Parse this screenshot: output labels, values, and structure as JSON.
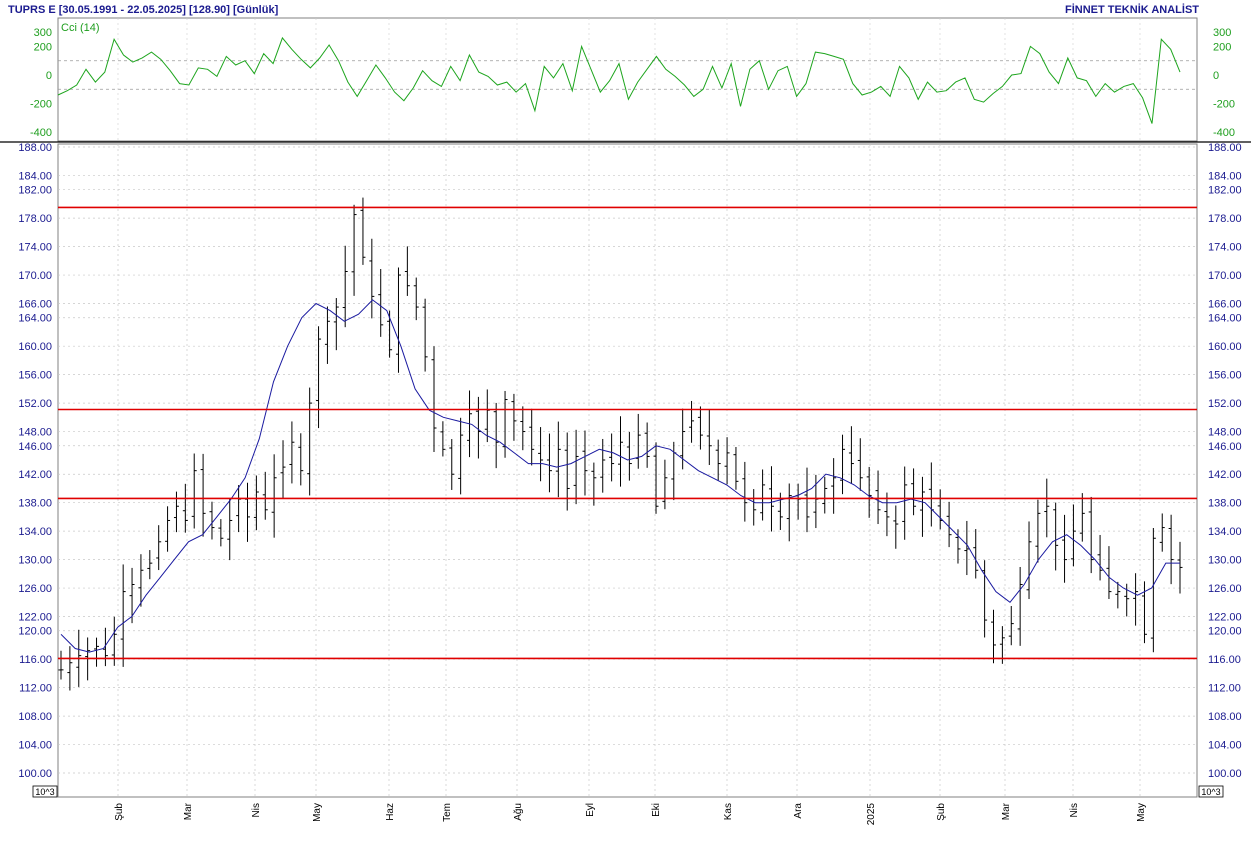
{
  "header": {
    "symbol": "TUPRS E",
    "range": "[30.05.1991 - 22.05.2025]",
    "last": "[128.90]",
    "period": "[Günlük]",
    "brand": "FİNNET TEKNİK ANALİST"
  },
  "colors": {
    "text": "#1b1b8f",
    "cci": "#1ea51e",
    "ma": "#1a1aa0",
    "bars": "#000000",
    "levels": "#e00000",
    "grid": "#b8b8b8"
  },
  "chart_data": [
    {
      "type": "line",
      "title": "Cci (14)",
      "ylim": [
        -450,
        400
      ],
      "y_ticks": [
        300,
        200,
        0,
        -200,
        -400
      ],
      "y_tick_labels": [
        "300",
        "200",
        "0",
        "-200",
        "-400"
      ],
      "dashed_levels": [
        100,
        -100
      ],
      "series": [
        {
          "name": "Cci (14)",
          "values": [
            -140,
            -110,
            -70,
            40,
            -50,
            20,
            250,
            140,
            90,
            120,
            160,
            110,
            30,
            -60,
            -70,
            50,
            40,
            -10,
            130,
            70,
            100,
            10,
            150,
            80,
            260,
            180,
            110,
            50,
            120,
            210,
            100,
            -50,
            -150,
            -40,
            70,
            -20,
            -120,
            -180,
            -90,
            30,
            -40,
            -80,
            60,
            -40,
            140,
            20,
            -10,
            -70,
            -50,
            -120,
            -60,
            -250,
            60,
            -20,
            80,
            -110,
            200,
            40,
            -120,
            -40,
            80,
            -170,
            -50,
            40,
            130,
            40,
            -10,
            -70,
            -150,
            -100,
            60,
            -90,
            80,
            -220,
            40,
            100,
            -100,
            30,
            60,
            -150,
            -60,
            160,
            150,
            130,
            110,
            -60,
            -140,
            -120,
            -80,
            -150,
            60,
            -20,
            -170,
            -50,
            -120,
            -110,
            -50,
            -20,
            -170,
            -190,
            -130,
            -80,
            0,
            10,
            200,
            150,
            20,
            -60,
            120,
            -20,
            -40,
            -150,
            -60,
            -120,
            -80,
            -60,
            -160,
            -340,
            250,
            180,
            20
          ]
        }
      ]
    },
    {
      "type": "bar",
      "subtype": "ohlc",
      "ylim": [
        98,
        189
      ],
      "y_ticks": [
        188,
        184,
        182,
        178,
        174,
        170,
        166,
        164,
        160,
        156,
        152,
        148,
        146,
        142,
        138,
        134,
        130,
        126,
        122,
        120,
        116,
        112,
        108,
        104,
        100
      ],
      "y_tick_labels": [
        "188.00",
        "184.00",
        "182.00",
        "178.00",
        "174.00",
        "170.00",
        "166.00",
        "164.00",
        "160.00",
        "156.00",
        "152.00",
        "148.00",
        "146.00",
        "142.00",
        "138.00",
        "134.00",
        "130.00",
        "126.00",
        "122.00",
        "120.00",
        "116.00",
        "112.00",
        "108.00",
        "104.00",
        "100.00"
      ],
      "scale_label": "10^3",
      "x_labels": [
        "Şub",
        "Mar",
        "Nis",
        "May",
        "Haz",
        "Tem",
        "Ağu",
        "Eyl",
        "Eki",
        "Kas",
        "Ara",
        "2025",
        "Şub",
        "Mar",
        "Nis",
        "May"
      ],
      "horizontal_levels": [
        179.5,
        151.1,
        138.6,
        116.1
      ],
      "series": [
        {
          "name": "Close",
          "values": [
            114.5,
            115.5,
            116.5,
            117.2,
            117.8,
            116.5,
            119.5,
            125.5,
            126.5,
            128.5,
            129.5,
            132.5,
            135.5,
            137.5,
            135.5,
            142.5,
            136.5,
            134.5,
            133.0,
            135.5,
            138.5,
            136.0,
            139.5,
            137.0,
            141.5,
            143.0,
            146.5,
            142.5,
            152.0,
            161.0,
            163.5,
            165.5,
            170.5,
            178.5,
            172.5,
            167.0,
            163.0,
            159.5,
            170.0,
            168.5,
            165.5,
            158.5,
            148.5,
            145.5,
            142.0,
            147.5,
            150.5,
            148.0,
            151.0,
            146.5,
            152.5,
            149.5,
            148.0,
            145.5,
            144.0,
            142.5,
            145.5,
            140.0,
            144.5,
            142.5,
            141.5,
            144.0,
            143.5,
            146.5,
            143.5,
            147.5,
            144.5,
            137.5,
            141.5,
            145.0,
            148.0,
            149.5,
            147.5,
            146.0,
            143.5,
            145.0,
            141.0,
            138.0,
            137.0,
            140.5,
            137.5,
            136.0,
            139.0,
            138.5,
            136.0,
            138.5,
            140.0,
            141.5,
            145.5,
            143.5,
            141.5,
            139.0,
            137.0,
            136.0,
            135.0,
            140.5,
            137.5,
            139.5,
            137.0,
            135.5,
            133.5,
            131.5,
            131.5,
            128.5,
            121.5,
            118.0,
            119.0,
            121.0,
            126.5,
            132.5,
            136.5,
            137.5,
            132.0,
            130.0,
            134.0,
            136.5,
            130.0,
            128.5,
            125.5,
            125.5,
            124.5,
            125.5,
            119.5,
            133.0,
            134.5,
            130.0,
            128.9
          ]
        },
        {
          "name": "Moving Average",
          "values": [
            119.5,
            117.5,
            117.0,
            117.5,
            120.5,
            122.0,
            125.0,
            127.5,
            130.0,
            132.5,
            133.5,
            136.0,
            138.5,
            141.5,
            147.0,
            155.0,
            160.0,
            164.0,
            166.0,
            165.0,
            163.5,
            164.5,
            166.5,
            165.0,
            160.0,
            154.0,
            151.0,
            150.0,
            149.5,
            149.0,
            147.5,
            146.5,
            145.0,
            143.5,
            143.5,
            143.0,
            143.5,
            144.5,
            145.5,
            145.0,
            144.0,
            144.5,
            146.0,
            145.5,
            144.0,
            142.5,
            141.5,
            140.5,
            139.0,
            138.0,
            138.0,
            138.5,
            139.0,
            140.0,
            142.0,
            141.5,
            140.5,
            139.0,
            138.0,
            138.0,
            138.5,
            138.0,
            136.0,
            134.0,
            132.0,
            128.5,
            125.5,
            124.0,
            126.5,
            130.0,
            132.5,
            133.5,
            132.0,
            130.0,
            127.5,
            126.0,
            125.0,
            126.0,
            129.5,
            129.5
          ]
        }
      ]
    }
  ]
}
